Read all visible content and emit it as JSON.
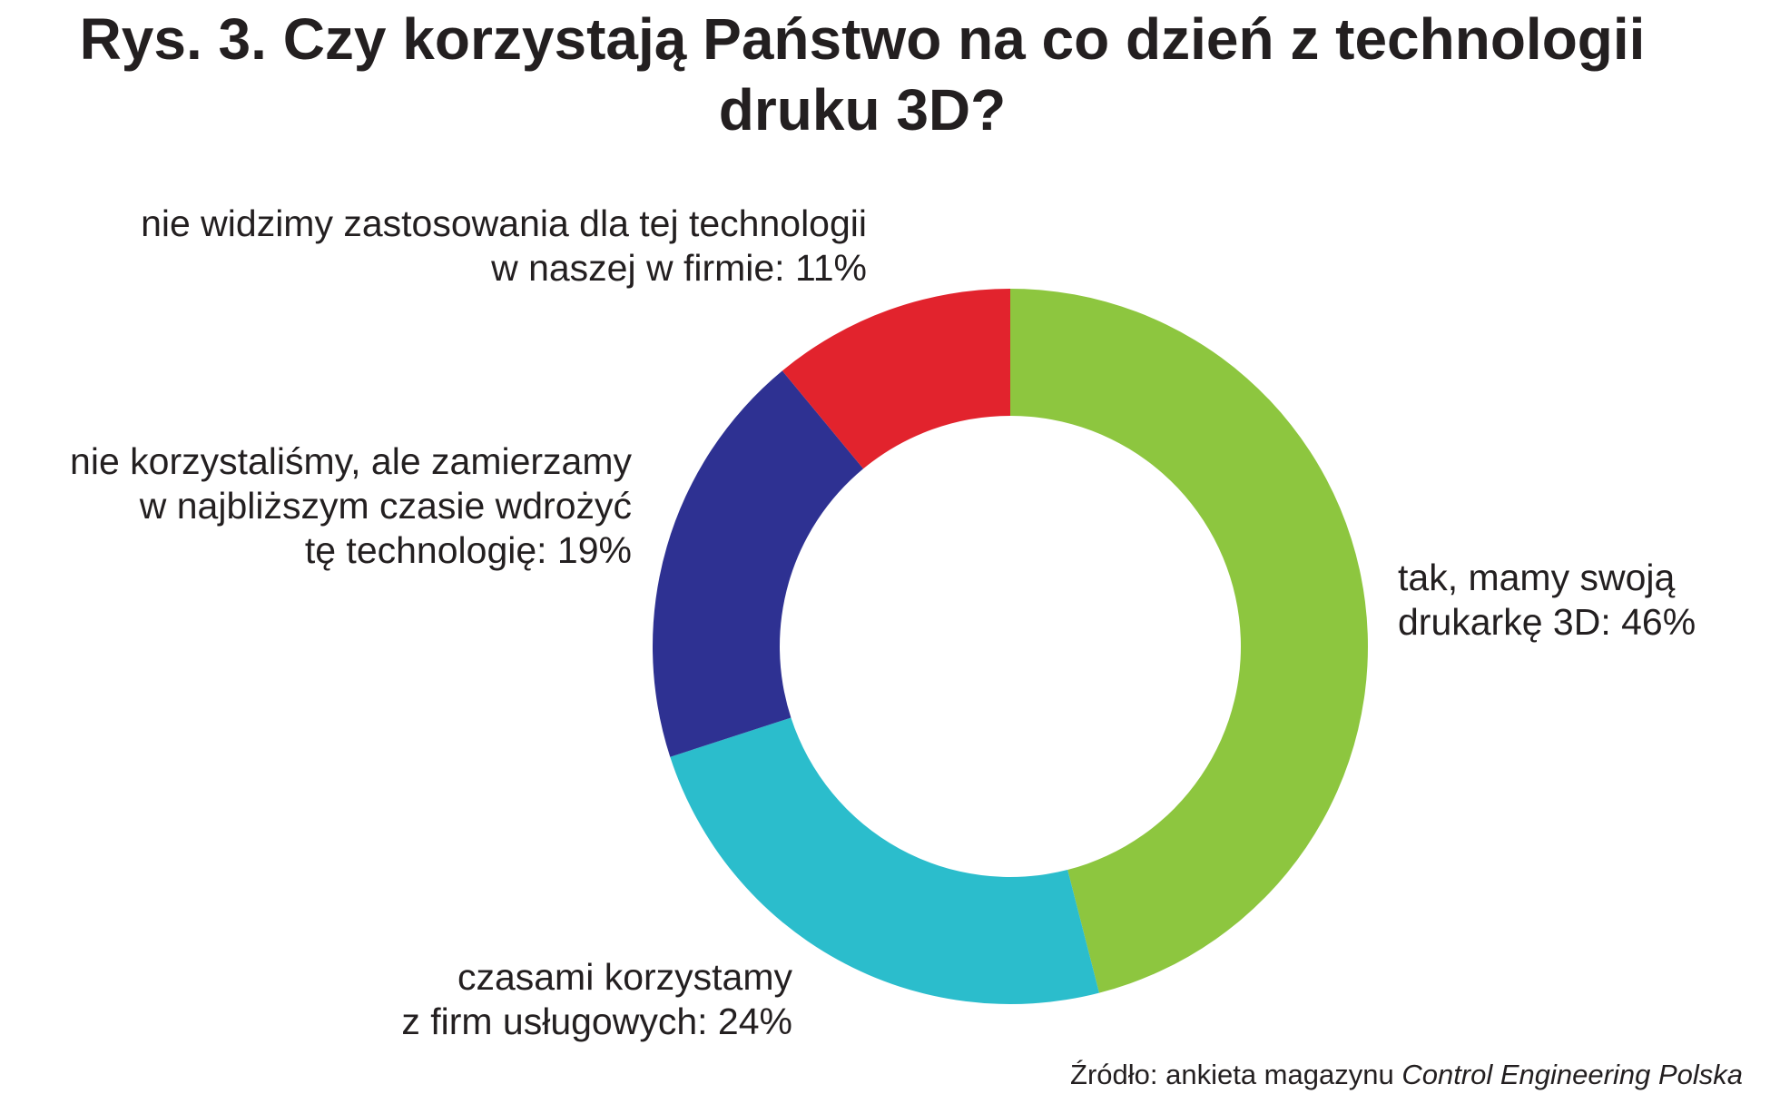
{
  "chart_data": {
    "type": "pie",
    "title_lines": [
      "Rys. 3. Czy korzystają Państwo na co dzień z technologii",
      "druku 3D?"
    ],
    "categories": [
      "tak, mamy swoją drukarkę 3D",
      "czasami korzystamy z firm usługowych",
      "nie korzystaliśmy, ale zamierzamy w najbliższym czasie wdrożyć tę technologię",
      "nie widzimy zastosowania dla tej technologii w naszej w firmie"
    ],
    "values": [
      46,
      24,
      19,
      11
    ],
    "colors": [
      "#8dc63f",
      "#2bbdcc",
      "#2e3192",
      "#e2232d"
    ],
    "donut": true,
    "start": "top",
    "direction": "clockwise",
    "data_labels": [
      {
        "lines": [
          "tak, mamy swoją",
          "drukarkę 3D: 46%"
        ]
      },
      {
        "lines": [
          "czasami korzystamy",
          "z firm usługowych: 24%"
        ]
      },
      {
        "lines": [
          "nie korzystaliśmy, ale zamierzamy",
          "w najbliższym czasie wdrożyć",
          "tę technologię: 19%"
        ]
      },
      {
        "lines": [
          "nie widzimy zastosowania dla tej technologii",
          "w naszej w firmie: 11%"
        ]
      }
    ],
    "legend": "none"
  },
  "source": {
    "prefix": "Źródło: ankieta magazynu ",
    "italic": "Control Engineering Polska"
  }
}
